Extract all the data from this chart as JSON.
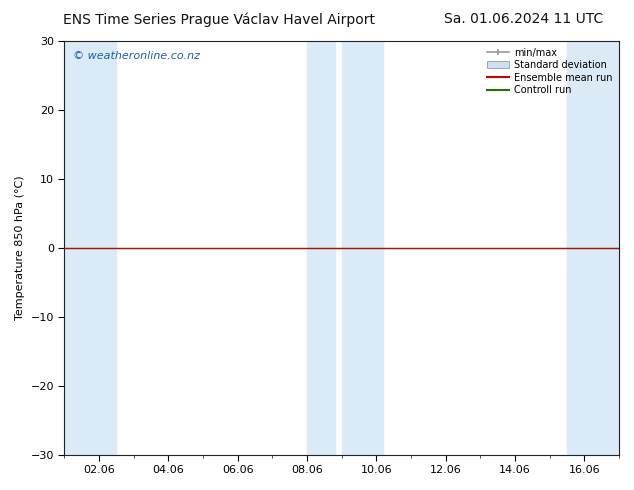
{
  "title": "ENS Time Series Prague Václav Havel Airport",
  "date_str": "Sa. 01.06.2024 11 UTC",
  "ylabel": "Temperature 850 hPa (°C)",
  "watermark": "© weatheronline.co.nz",
  "ylim": [
    -30,
    30
  ],
  "yticks": [
    -30,
    -20,
    -10,
    0,
    10,
    20,
    30
  ],
  "xtick_labels": [
    "02.06",
    "04.06",
    "06.06",
    "08.06",
    "10.06",
    "12.06",
    "14.06",
    "16.06"
  ],
  "xtick_positions": [
    2,
    4,
    6,
    8,
    10,
    12,
    14,
    16
  ],
  "xlim": [
    1,
    17
  ],
  "shaded_bands": [
    {
      "x_start": 1,
      "x_end": 2.5,
      "color": "#daeaf7"
    },
    {
      "x_start": 8,
      "x_end": 8.8,
      "color": "#daeaf7"
    },
    {
      "x_start": 9.0,
      "x_end": 10.2,
      "color": "#daeaf7"
    },
    {
      "x_start": 15.5,
      "x_end": 17,
      "color": "#daeaf7"
    }
  ],
  "hline_color": "#2a6e00",
  "hline_lw": 1.0,
  "ensemble_mean_color": "#cc0000",
  "control_run_color": "#2a6e00",
  "bg_color": "#ffffff",
  "legend_minmax_color": "#999999",
  "legend_stddev_color": "#cce0f5",
  "title_fontsize": 10,
  "axis_fontsize": 8,
  "tick_fontsize": 8,
  "watermark_color": "#1a5fb4",
  "watermark_fontsize": 8
}
